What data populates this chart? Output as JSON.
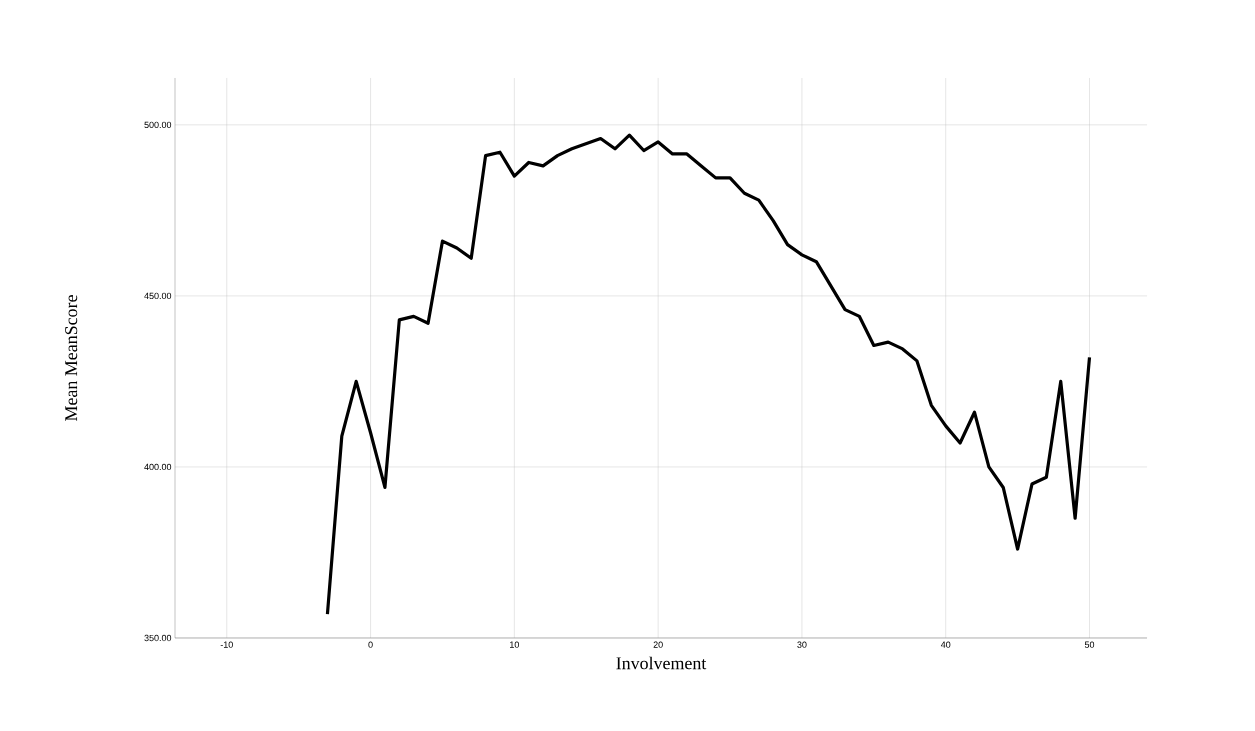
{
  "chart_data": {
    "type": "line",
    "xlabel": "Involvement",
    "ylabel": "Mean MeanScore",
    "x": [
      -3,
      -2,
      -1,
      0,
      1,
      2,
      3,
      4,
      5,
      6,
      7,
      8,
      9,
      10,
      11,
      12,
      13,
      14,
      15,
      16,
      17,
      18,
      19,
      20,
      21,
      22,
      23,
      24,
      25,
      26,
      27,
      28,
      29,
      30,
      31,
      32,
      33,
      34,
      35,
      36,
      37,
      38,
      39,
      40,
      41,
      42,
      43,
      44,
      45,
      46,
      47,
      48,
      49,
      50
    ],
    "values": [
      357,
      409,
      425,
      410,
      394,
      443,
      444,
      442,
      466,
      464,
      461,
      491,
      492,
      485,
      489,
      488,
      491,
      493,
      494.5,
      496,
      493,
      497,
      492.5,
      495,
      491.5,
      491.5,
      488,
      484.5,
      484.5,
      480,
      478,
      472,
      465,
      462,
      460,
      453,
      446,
      444,
      435.5,
      436.5,
      434.5,
      431,
      418,
      412,
      407,
      416,
      400,
      394,
      376,
      395,
      397,
      425,
      385,
      432
    ],
    "color": "#000000",
    "xlim": [
      -13.6,
      54
    ],
    "ylim": [
      350,
      513.7
    ],
    "xticks": [
      -10,
      0,
      10,
      20,
      30,
      40,
      50
    ],
    "yticks": [
      {
        "value": 350,
        "label": "350.00"
      },
      {
        "value": 400,
        "label": "400.00"
      },
      {
        "value": 450,
        "label": "450.00"
      },
      {
        "value": 500,
        "label": "500.00"
      }
    ],
    "grid": true,
    "line_style": "solid",
    "marker": "none"
  }
}
